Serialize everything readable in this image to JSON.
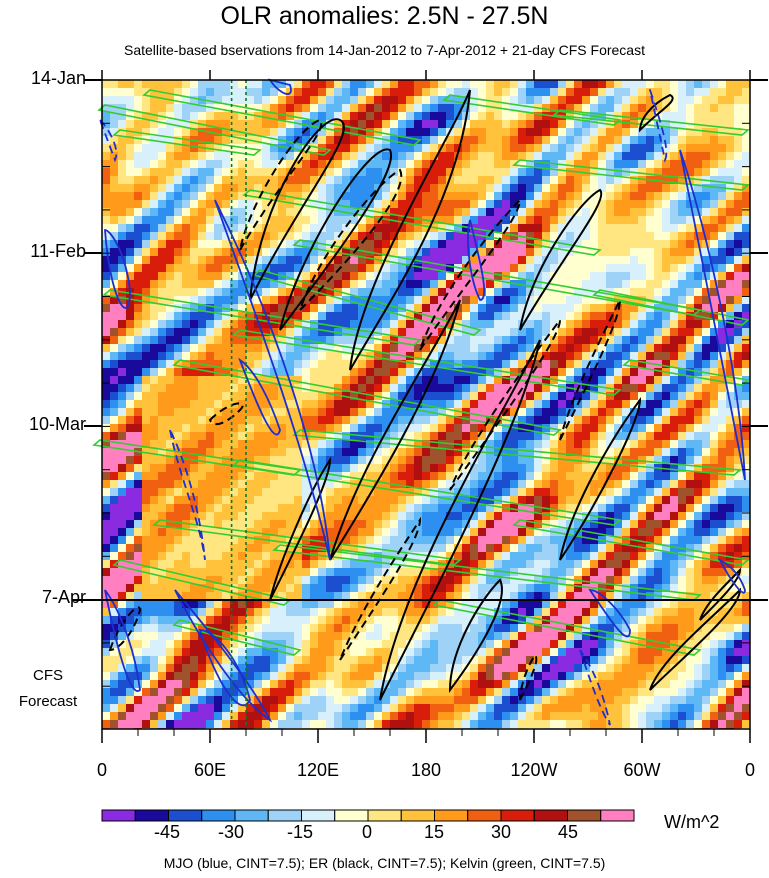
{
  "chart_data": {
    "type": "heatmap",
    "title": "OLR anomalies: 2.5N - 27.5N",
    "subtitle": "Satellite-based bservations from 14-Jan-2012 to 7-Apr-2012 + 21-day CFS Forecast",
    "x_tick_labels": [
      "0",
      "60E",
      "120E",
      "180",
      "120W",
      "60W",
      "0"
    ],
    "x_range_deg_east": [
      0,
      360
    ],
    "y_tick_labels": [
      "14-Jan",
      "11-Feb",
      "10-Mar",
      "7-Apr"
    ],
    "y_range": [
      "14-Jan-2012",
      "28-Apr-2012"
    ],
    "forecast_label": [
      "CFS",
      "Forecast"
    ],
    "forecast_start": "7-Apr",
    "reference_longitudes_deg_east": [
      72,
      80
    ],
    "colorbar": {
      "unit": "W/m^2",
      "tick_labels": [
        "-45",
        "-30",
        "-15",
        "0",
        "15",
        "30",
        "45"
      ],
      "levels": [
        -52.5,
        -45,
        -37.5,
        -30,
        -22.5,
        -15,
        -7.5,
        0,
        7.5,
        15,
        22.5,
        30,
        37.5,
        45,
        52.5
      ],
      "colors": [
        "#8a2be2",
        "#1a0a9c",
        "#1c4fd0",
        "#2d8ff0",
        "#5eb8f5",
        "#9fd2f7",
        "#d8f0fb",
        "#ffffd0",
        "#ffe680",
        "#ffc23a",
        "#ff9a1a",
        "#f06010",
        "#d81e0a",
        "#b01010",
        "#a0522d",
        "#ff7fc0"
      ]
    },
    "contour_overlays": [
      {
        "name": "MJO",
        "color": "#1c2fd0",
        "cint": 7.5
      },
      {
        "name": "ER",
        "color": "#000000",
        "cint": 7.5
      },
      {
        "name": "Kelvin",
        "color": "#33cc33",
        "cint": 7.5
      }
    ]
  },
  "caption": "MJO (blue, CINT=7.5); ER (black, CINT=7.5); Kelvin (green, CINT=7.5)"
}
